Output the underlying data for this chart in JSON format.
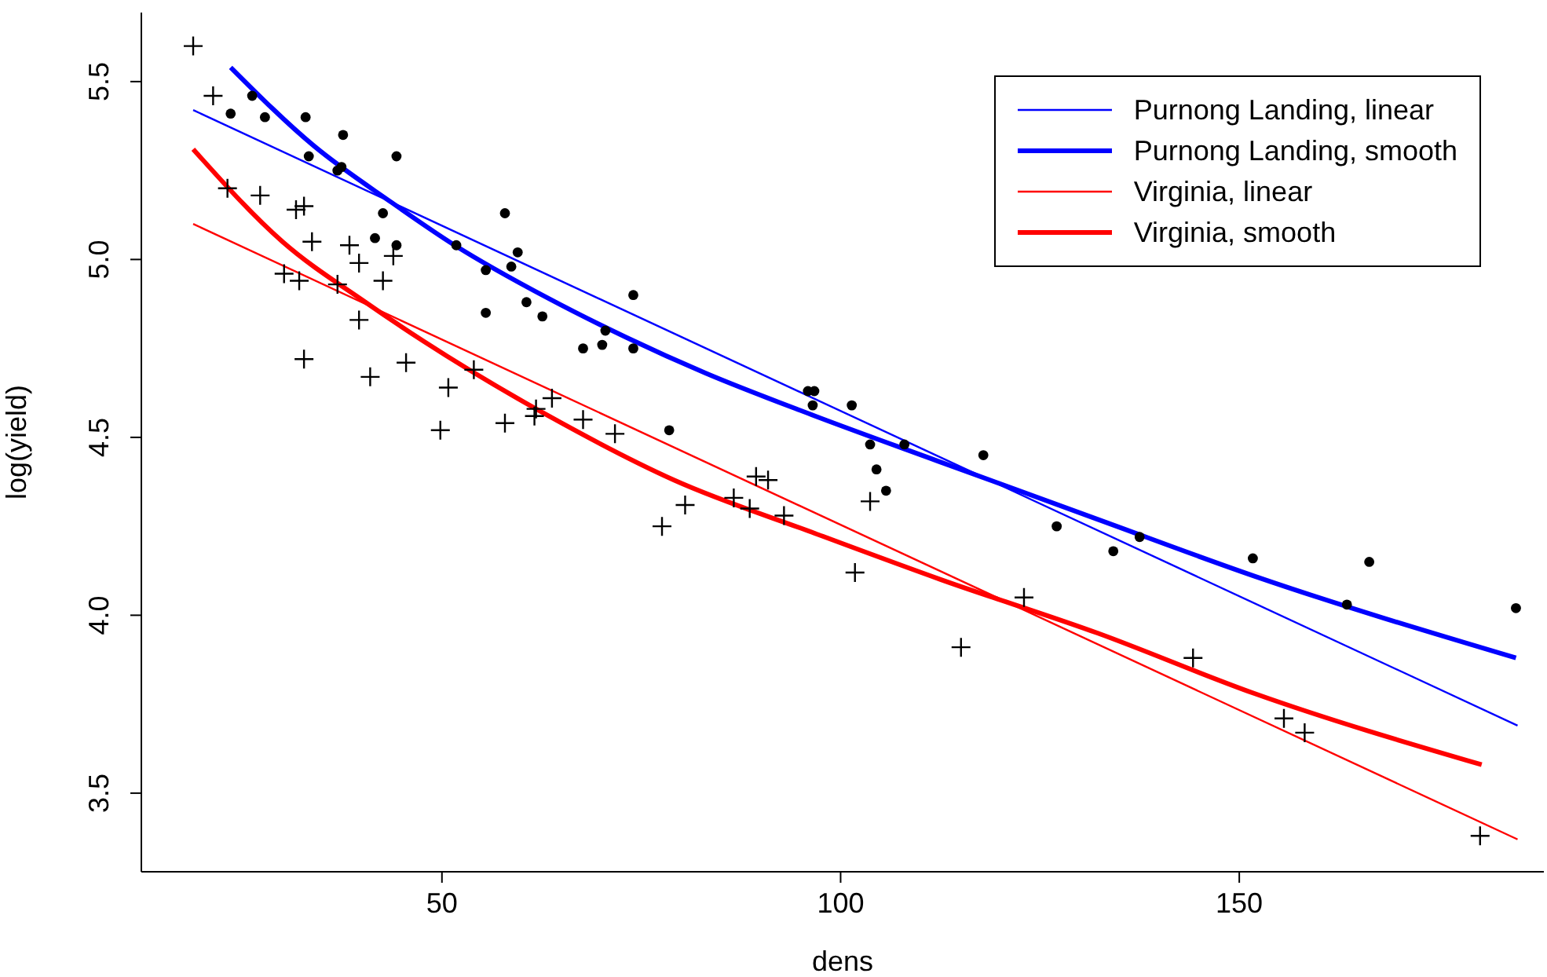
{
  "chart_data": {
    "type": "scatter",
    "xlabel": "dens",
    "ylabel": "log(yield)",
    "xlim": [
      12.3,
      188.2
    ],
    "ylim": [
      3.279,
      5.694
    ],
    "xticks": [
      50,
      100,
      150
    ],
    "yticks": [
      3.5,
      {
        "value": 4,
        "label": "4.0"
      },
      4.5,
      {
        "value": 5,
        "label": "5.0"
      },
      5.5
    ],
    "grid": false,
    "legend": "top right",
    "series": [
      {
        "marker": "circle",
        "color": "#000000",
        "x": [
          23.5,
          26.2,
          27.8,
          32.9,
          37.6,
          33.3,
          36.9,
          37.4,
          44.3,
          42.6,
          41.6,
          44.3,
          51.8,
          57.9,
          59.5,
          58.7,
          55.5,
          60.6,
          55.5,
          62.6,
          74.0,
          70.5,
          70.1,
          67.7,
          74.0,
          78.5,
          95.9,
          96.7,
          96.5,
          101.4,
          103.7,
          108.0,
          104.5,
          105.7,
          117.9,
          127.1,
          134.2,
          137.5,
          151.7,
          166.3,
          163.5,
          184.7
        ],
        "values": [
          5.41,
          5.46,
          5.4,
          5.4,
          5.35,
          5.29,
          5.25,
          5.26,
          5.29,
          5.13,
          5.06,
          5.04,
          5.04,
          5.13,
          5.02,
          4.98,
          4.97,
          4.88,
          4.85,
          4.84,
          4.9,
          4.8,
          4.76,
          4.75,
          4.75,
          4.52,
          4.63,
          4.63,
          4.59,
          4.59,
          4.48,
          4.48,
          4.41,
          4.35,
          4.45,
          4.25,
          4.18,
          4.22,
          4.16,
          4.15,
          4.03,
          4.02
        ]
      },
      {
        "marker": "cross",
        "color": "#000000",
        "x": [
          18.8,
          21.3,
          23.1,
          27.2,
          31.7,
          32.7,
          33.7,
          38.4,
          39.6,
          43.9,
          30.2,
          32.1,
          36.9,
          42.6,
          39.6,
          32.7,
          41.0,
          45.5,
          50.8,
          49.8,
          54.0,
          57.9,
          61.8,
          61.6,
          63.8,
          67.7,
          71.7,
          77.6,
          80.5,
          86.6,
          89.4,
          90.9,
          88.6,
          92.9,
          103.7,
          101.8,
          115.1,
          123.0,
          144.2,
          155.6,
          158.2,
          180.2
        ],
        "values": [
          5.6,
          5.46,
          5.2,
          5.18,
          5.14,
          5.15,
          5.05,
          5.04,
          4.99,
          5.01,
          4.96,
          4.94,
          4.93,
          4.94,
          4.83,
          4.72,
          4.67,
          4.71,
          4.64,
          4.52,
          4.69,
          4.54,
          4.58,
          4.56,
          4.61,
          4.55,
          4.51,
          4.25,
          4.31,
          4.33,
          4.39,
          4.38,
          4.3,
          4.28,
          4.32,
          4.12,
          3.91,
          4.05,
          3.88,
          3.71,
          3.67,
          3.38
        ]
      },
      {
        "type": "line",
        "name": "Purnong Landing, linear",
        "color": "#0000ff",
        "marker": "none",
        "x": [
          18.8,
          184.9
        ],
        "values": [
          5.42,
          3.69
        ]
      },
      {
        "type": "line",
        "name": "Purnong Landing, smooth",
        "color": "#0000ff",
        "marker": "none",
        "x": [
          23.5,
          33.9,
          43.7,
          51.6,
          63.4,
          73.2,
          83.1,
          96.8,
          112.6,
          132.2,
          151.9,
          184.7
        ],
        "values": [
          5.54,
          5.32,
          5.16,
          5.04,
          4.89,
          4.78,
          4.68,
          4.56,
          4.43,
          4.27,
          4.11,
          3.88
        ]
      },
      {
        "type": "line",
        "name": "Virginia, linear",
        "color": "#ff0000",
        "marker": "none",
        "x": [
          18.8,
          184.9
        ],
        "values": [
          5.1,
          3.37
        ]
      },
      {
        "type": "line",
        "name": "Virginia, smooth",
        "color": "#ff0000",
        "marker": "none",
        "x": [
          18.8,
          30.0,
          40.4,
          47.7,
          63.4,
          79.1,
          96.8,
          112.6,
          132.2,
          151.9,
          180.4
        ],
        "values": [
          5.31,
          5.05,
          4.88,
          4.77,
          4.56,
          4.38,
          4.23,
          4.1,
          3.95,
          3.78,
          3.58
        ]
      }
    ]
  }
}
